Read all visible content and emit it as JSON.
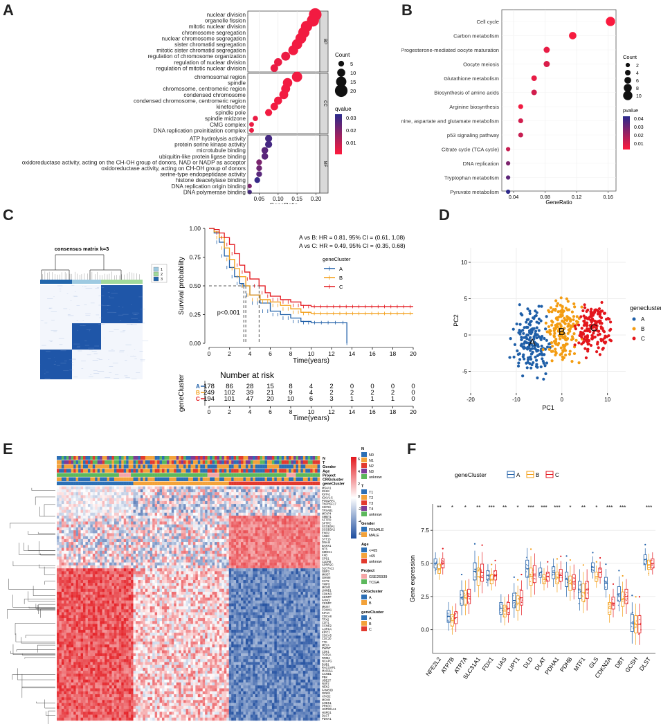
{
  "figure": {
    "panel_labels": [
      "A",
      "B",
      "C",
      "D",
      "E",
      "F"
    ]
  },
  "colors": {
    "cluster_a": "#1f5fa8",
    "cluster_b": "#f39c12",
    "cluster_c": "#e3161c",
    "heat_high": "#e3161c",
    "heat_low": "#1d4c9e",
    "dot_low_q": "#ff1a3c",
    "dot_high_q": "#2a2a8c"
  },
  "panelA": {
    "xlabel": "GeneRatio",
    "x_ticks": [
      "0.05",
      "0.10",
      "0.15",
      "0.20"
    ],
    "xlim": [
      0.02,
      0.21
    ],
    "groups": [
      {
        "name": "BP",
        "terms": [
          {
            "label": "nuclear division",
            "ratio": 0.198,
            "count": 20,
            "q": 0.002
          },
          {
            "label": "organelle fission",
            "ratio": 0.192,
            "count": 19,
            "q": 0.002
          },
          {
            "label": "mitotic nuclear division",
            "ratio": 0.175,
            "count": 17,
            "q": 0.002
          },
          {
            "label": "chromosome segregation",
            "ratio": 0.168,
            "count": 17,
            "q": 0.002
          },
          {
            "label": "nuclear chromosome segregation",
            "ratio": 0.16,
            "count": 16,
            "q": 0.002
          },
          {
            "label": "sister chromatid segregation",
            "ratio": 0.15,
            "count": 15,
            "q": 0.002
          },
          {
            "label": "mitotic sister chromatid segregation",
            "ratio": 0.14,
            "count": 14,
            "q": 0.002
          },
          {
            "label": "regulation of chromosome organization",
            "ratio": 0.12,
            "count": 12,
            "q": 0.003
          },
          {
            "label": "regulation of nuclear division",
            "ratio": 0.1,
            "count": 10,
            "q": 0.003
          },
          {
            "label": "regulation of mitotic nuclear division",
            "ratio": 0.09,
            "count": 9,
            "q": 0.003
          }
        ]
      },
      {
        "name": "CC",
        "terms": [
          {
            "label": "chromosomal region",
            "ratio": 0.15,
            "count": 15,
            "q": 0.002
          },
          {
            "label": "spindle",
            "ratio": 0.125,
            "count": 13,
            "q": 0.002
          },
          {
            "label": "chromosome, centromeric region",
            "ratio": 0.12,
            "count": 12,
            "q": 0.002
          },
          {
            "label": "condensed chromosome",
            "ratio": 0.115,
            "count": 12,
            "q": 0.002
          },
          {
            "label": "condensed chromosome, centromeric region",
            "ratio": 0.1,
            "count": 10,
            "q": 0.002
          },
          {
            "label": "kinetochore",
            "ratio": 0.09,
            "count": 9,
            "q": 0.002
          },
          {
            "label": "spindle pole",
            "ratio": 0.075,
            "count": 8,
            "q": 0.002
          },
          {
            "label": "spindle midzone",
            "ratio": 0.04,
            "count": 4,
            "q": 0.003
          },
          {
            "label": "CMG complex",
            "ratio": 0.03,
            "count": 3,
            "q": 0.003
          },
          {
            "label": "DNA replication preinitiation complex",
            "ratio": 0.03,
            "count": 3,
            "q": 0.003
          }
        ]
      },
      {
        "name": "MF",
        "terms": [
          {
            "label": "ATP hydrolysis activity",
            "ratio": 0.075,
            "count": 8,
            "q": 0.028
          },
          {
            "label": "protein serine kinase activity",
            "ratio": 0.075,
            "count": 8,
            "q": 0.028
          },
          {
            "label": "microtubule binding",
            "ratio": 0.065,
            "count": 7,
            "q": 0.025
          },
          {
            "label": "ubiquitin-like protein ligase binding",
            "ratio": 0.065,
            "count": 7,
            "q": 0.025
          },
          {
            "label": "oxidoreductase activity, acting on the CH-OH group of donors, NAD or NADP as acceptor",
            "ratio": 0.05,
            "count": 5,
            "q": 0.02
          },
          {
            "label": "oxidoreductase activity, acting on CH-OH group of donors",
            "ratio": 0.05,
            "count": 5,
            "q": 0.022
          },
          {
            "label": "serine-type endopeptidase activity",
            "ratio": 0.05,
            "count": 5,
            "q": 0.025
          },
          {
            "label": "histone deacetylase binding",
            "ratio": 0.045,
            "count": 5,
            "q": 0.03
          },
          {
            "label": "DNA replication origin binding",
            "ratio": 0.025,
            "count": 2,
            "q": 0.02
          },
          {
            "label": "DNA polymerase binding",
            "ratio": 0.025,
            "count": 2,
            "q": 0.028
          }
        ]
      }
    ],
    "count_legend": {
      "title": "Count",
      "values": [
        "5",
        "10",
        "15",
        "20"
      ]
    },
    "q_legend": {
      "title": "qvalue",
      "ticks": [
        "0.03",
        "0.02",
        "0.01"
      ]
    }
  },
  "panelB": {
    "xlabel": "GeneRatio",
    "x_ticks": [
      "0.04",
      "0.08",
      "0.12",
      "0.16"
    ],
    "xlim": [
      0.025,
      0.17
    ],
    "terms": [
      {
        "label": "Cell cycle",
        "ratio": 0.163,
        "count": 10,
        "p": 0.001
      },
      {
        "label": "Carbon metabolism",
        "ratio": 0.115,
        "count": 7,
        "p": 0.002
      },
      {
        "label": "Progesterone-mediated oocyte maturation",
        "ratio": 0.082,
        "count": 5,
        "p": 0.005
      },
      {
        "label": "Oocyte meiosis",
        "ratio": 0.082,
        "count": 5,
        "p": 0.008
      },
      {
        "label": "Glutathione metabolism",
        "ratio": 0.066,
        "count": 4,
        "p": 0.005
      },
      {
        "label": "Biosynthesis of amino acids",
        "ratio": 0.066,
        "count": 4,
        "p": 0.01
      },
      {
        "label": "Arginine biosynthesis",
        "ratio": 0.049,
        "count": 3,
        "p": 0.003
      },
      {
        "label": "Alanine, aspartate and glutamate metabolism",
        "ratio": 0.049,
        "count": 3,
        "p": 0.01
      },
      {
        "label": "p53 signaling pathway",
        "ratio": 0.049,
        "count": 3,
        "p": 0.012
      },
      {
        "label": "Citrate cycle (TCA cycle)",
        "ratio": 0.033,
        "count": 2,
        "p": 0.012
      },
      {
        "label": "DNA replication",
        "ratio": 0.033,
        "count": 2,
        "p": 0.028
      },
      {
        "label": "Tryptophan metabolism",
        "ratio": 0.033,
        "count": 2,
        "p": 0.035
      },
      {
        "label": "Pyruvate metabolism",
        "ratio": 0.033,
        "count": 2,
        "p": 0.045
      }
    ],
    "count_legend": {
      "title": "Count",
      "values": [
        "2",
        "4",
        "6",
        "8",
        "10"
      ]
    },
    "p_legend": {
      "title": "pvalue",
      "ticks": [
        "0.04",
        "0.03",
        "0.02",
        "0.01"
      ]
    }
  },
  "panelC": {
    "consensus_title": "consensus matrix k=3",
    "consensus_legend": [
      "1",
      "2",
      "3"
    ],
    "km": {
      "ylabel": "Survival probability",
      "xlabel": "Time(years)",
      "x_ticks": [
        "0",
        "2",
        "4",
        "6",
        "8",
        "10",
        "12",
        "14",
        "16",
        "18",
        "20"
      ],
      "y_ticks": [
        "0.00",
        "0.25",
        "0.50",
        "0.75",
        "1.00"
      ],
      "hr_ab": "A vs B: HR = 0.81, 95% CI = (0.61, 1.08)",
      "hr_ac": "A vs C: HR = 0.49, 95% CI = (0.35, 0.68)",
      "pvalue": "p<0.001",
      "legend_title": "geneCluster",
      "legend_labels": [
        "A",
        "B",
        "C"
      ],
      "median": {
        "A": 3.4,
        "B": 3.6,
        "C": 4.9
      },
      "curves": {
        "A": [
          [
            0,
            1.0
          ],
          [
            0.5,
            0.96
          ],
          [
            1,
            0.88
          ],
          [
            1.5,
            0.76
          ],
          [
            2,
            0.66
          ],
          [
            2.5,
            0.58
          ],
          [
            3,
            0.52
          ],
          [
            3.4,
            0.5
          ],
          [
            4,
            0.42
          ],
          [
            5,
            0.35
          ],
          [
            6,
            0.28
          ],
          [
            7,
            0.25
          ],
          [
            8,
            0.22
          ],
          [
            9,
            0.19
          ],
          [
            10,
            0.18
          ],
          [
            12,
            0.18
          ],
          [
            13.5,
            0.18
          ],
          [
            13.5,
            0.0
          ]
        ],
        "B": [
          [
            0,
            1.0
          ],
          [
            0.5,
            0.97
          ],
          [
            1,
            0.92
          ],
          [
            1.5,
            0.83
          ],
          [
            2,
            0.73
          ],
          [
            2.5,
            0.65
          ],
          [
            3,
            0.58
          ],
          [
            3.6,
            0.5
          ],
          [
            4,
            0.42
          ],
          [
            5,
            0.38
          ],
          [
            6,
            0.36
          ],
          [
            7,
            0.33
          ],
          [
            8,
            0.3
          ],
          [
            9,
            0.27
          ],
          [
            10,
            0.26
          ],
          [
            20,
            0.26
          ]
        ],
        "C": [
          [
            0,
            1.0
          ],
          [
            0.5,
            0.99
          ],
          [
            1,
            0.96
          ],
          [
            1.5,
            0.92
          ],
          [
            2,
            0.86
          ],
          [
            2.5,
            0.78
          ],
          [
            3,
            0.68
          ],
          [
            3.5,
            0.62
          ],
          [
            4,
            0.56
          ],
          [
            4.9,
            0.5
          ],
          [
            5.5,
            0.44
          ],
          [
            6,
            0.41
          ],
          [
            7,
            0.38
          ],
          [
            8,
            0.36
          ],
          [
            9,
            0.33
          ],
          [
            10,
            0.32
          ],
          [
            20,
            0.32
          ]
        ]
      }
    },
    "risk": {
      "title": "Number at risk",
      "ylabel": "geneCluster",
      "xlabel": "Time(years)",
      "rows": [
        {
          "label": "A",
          "values": [
            "178",
            "86",
            "28",
            "15",
            "8",
            "4",
            "2",
            "0",
            "0",
            "0",
            "0"
          ]
        },
        {
          "label": "B",
          "values": [
            "249",
            "102",
            "39",
            "21",
            "9",
            "4",
            "2",
            "2",
            "2",
            "2",
            "0"
          ]
        },
        {
          "label": "C",
          "values": [
            "194",
            "101",
            "47",
            "20",
            "10",
            "6",
            "3",
            "1",
            "1",
            "1",
            "0"
          ]
        }
      ]
    }
  },
  "panelD": {
    "xlabel": "PC1",
    "ylabel": "PC2",
    "x_ticks": [
      "-20",
      "-10",
      "0",
      "10"
    ],
    "y_ticks": [
      "-5",
      "0",
      "5",
      "10"
    ],
    "xlim": [
      -20,
      14
    ],
    "ylim": [
      -8,
      12
    ],
    "legend_title": "genecluster",
    "legend_labels": [
      "A",
      "B",
      "C"
    ],
    "cluster_labels": [
      "A",
      "B",
      "C"
    ],
    "centers": {
      "A": [
        -6.5,
        -1.0
      ],
      "B": [
        0.0,
        0.5
      ],
      "C": [
        7.0,
        1.0
      ]
    }
  },
  "panelE": {
    "annotation_tracks": [
      "N",
      "T",
      "Gender",
      "Age",
      "Project",
      "CRGcluster",
      "geneCluster"
    ],
    "genes": [
      "MS4A1",
      "IGHM",
      "IGHA1",
      "IGKV1-5",
      "POU2AF1",
      "TNFRSF17",
      "CD79A",
      "TPSAB1",
      "MFAP4",
      "SMBT1",
      "SFTPD",
      "SFTPC",
      "SCGB3A1",
      "SCGB3A2",
      "ENO2",
      "ANKK",
      "SYT13",
      "DNAI4",
      "BARX1",
      "NTS",
      "SMOC1",
      "FXB",
      "CPS1",
      "CLDN6",
      "SPRR2C",
      "SLC7A11",
      "GBP3",
      "MKI67",
      "GMNN",
      "CCT2",
      "TMPO",
      "MCM2",
      "LMNB1",
      "CDKN3",
      "CENPF",
      "FANCI",
      "CENPF",
      "MKI67",
      "FOXM1",
      "KIF4A",
      "CDCA8",
      "TPX2",
      "CDT1",
      "CCNE2",
      "AURKA",
      "KIFC1",
      "CDCA5",
      "CDC20",
      "TTK",
      "MELK",
      "ZWINT",
      "CDK1",
      "TOP2A",
      "RRM2",
      "NCAPG",
      "BUB1",
      "RACGAP1",
      "MAD2L1",
      "CCNB1",
      "PBK",
      "UBE2T",
      "NUF2",
      "NEK2",
      "FAM83D",
      "GINS1",
      "ATAD2",
      "MCM4",
      "CHEK1",
      "PRKDC",
      "HSP90AA1",
      "HSPD1",
      "DLST",
      "PDHA1"
    ],
    "scale_ticks": [
      "6",
      "4",
      "2",
      "0",
      "-2",
      "-4",
      "-6"
    ],
    "legend": [
      {
        "title": "N",
        "items": [
          [
            "N0",
            "#2c6fb5"
          ],
          [
            "N1",
            "#f3a23a"
          ],
          [
            "N2",
            "#e23a2e"
          ],
          [
            "N3",
            "#7d3c98"
          ],
          [
            "unknow",
            "#5cb85c"
          ]
        ]
      },
      {
        "title": "T",
        "items": [
          [
            "T1",
            "#2c6fb5"
          ],
          [
            "T2",
            "#f3a23a"
          ],
          [
            "T3",
            "#e23a2e"
          ],
          [
            "T4",
            "#7d3c98"
          ],
          [
            "unknow",
            "#5cb85c"
          ]
        ]
      },
      {
        "title": "Gender",
        "items": [
          [
            "FEMALE",
            "#2c6fb5"
          ],
          [
            "MALE",
            "#f3a23a"
          ]
        ]
      },
      {
        "title": "Age",
        "items": [
          [
            "<=65",
            "#2c6fb5"
          ],
          [
            ">65",
            "#f3a23a"
          ],
          [
            "unknow",
            "#e23a2e"
          ]
        ]
      },
      {
        "title": "Project",
        "items": [
          [
            "GSE26939",
            "#f4a6a6"
          ],
          [
            "TCGA",
            "#5cb85c"
          ]
        ]
      },
      {
        "title": "CRGcluster",
        "items": [
          [
            "A",
            "#2c6fb5"
          ],
          [
            "B",
            "#f3a23a"
          ]
        ]
      },
      {
        "title": "geneCluster",
        "items": [
          [
            "A",
            "#2c6fb5"
          ],
          [
            "B",
            "#f3a23a"
          ],
          [
            "C",
            "#e23a2e"
          ]
        ]
      }
    ]
  },
  "panelF": {
    "ylabel": "Gene expression",
    "y_ticks": [
      "0.0",
      "2.5",
      "5.0",
      "7.5"
    ],
    "ylim": [
      -1.8,
      9.5
    ],
    "legend_title": "geneCluster",
    "legend_labels": [
      "A",
      "B",
      "C"
    ],
    "genes": [
      "NFE2L2",
      "ATP7B",
      "ATP7A",
      "SLC31A1",
      "FDX1",
      "LIAS",
      "LIPT1",
      "DLD",
      "DLAT",
      "PDHA1",
      "PDHB",
      "MTF1",
      "GLS",
      "CDKN2A",
      "DBT",
      "GCSH",
      "DLST"
    ],
    "signif": [
      "**",
      "*",
      "*",
      "**",
      "***",
      "**",
      "*",
      "***",
      "***",
      "***",
      "*",
      "**",
      "*",
      "***",
      "***",
      "",
      "***"
    ],
    "medians": {
      "A": [
        5.0,
        1.0,
        2.4,
        4.4,
        4.1,
        1.6,
        2.2,
        4.6,
        4.3,
        4.3,
        3.8,
        3.0,
        4.7,
        3.5,
        2.7,
        0.5,
        5.3
      ],
      "B": [
        4.6,
        0.7,
        2.4,
        4.0,
        3.8,
        1.4,
        2.0,
        4.0,
        3.8,
        3.9,
        3.5,
        2.8,
        4.0,
        1.6,
        2.3,
        0.4,
        4.9
      ],
      "C": [
        5.0,
        0.9,
        2.5,
        4.3,
        4.1,
        1.6,
        2.4,
        4.2,
        4.0,
        4.1,
        3.6,
        3.0,
        4.3,
        2.0,
        2.5,
        0.4,
        5.0
      ]
    }
  }
}
